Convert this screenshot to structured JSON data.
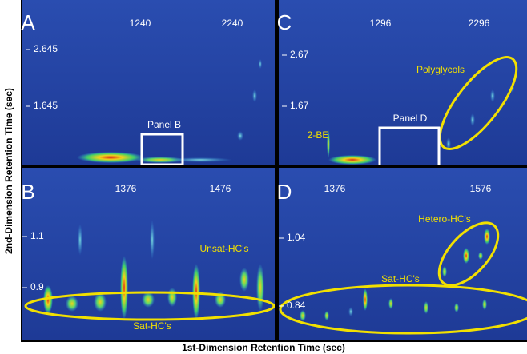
{
  "figure": {
    "y_axis_label": "2nd-Dimension Retention Time (sec)",
    "x_axis_label": "1st-Dimension Retention Time (sec)",
    "panels": [
      {
        "label": "A",
        "xticks": [
          1240,
          2240
        ],
        "yticks": [
          2.645,
          1.645
        ],
        "annotations": [
          "Panel B"
        ]
      },
      {
        "label": "C",
        "xticks": [
          1296,
          2296
        ],
        "yticks": [
          2.67,
          1.67
        ],
        "annotations": [
          "Polyglycols",
          "2-BE",
          "Panel D"
        ]
      },
      {
        "label": "B",
        "xticks": [
          1376,
          1476
        ],
        "yticks": [
          1.1,
          0.9
        ],
        "annotations": [
          "Unsat-HC's",
          "Sat-HC's"
        ]
      },
      {
        "label": "D",
        "xticks": [
          1376,
          1576
        ],
        "yticks": [
          1.04,
          0.84
        ],
        "annotations": [
          "Hetero-HC's",
          "Sat-HC's"
        ]
      }
    ]
  }
}
